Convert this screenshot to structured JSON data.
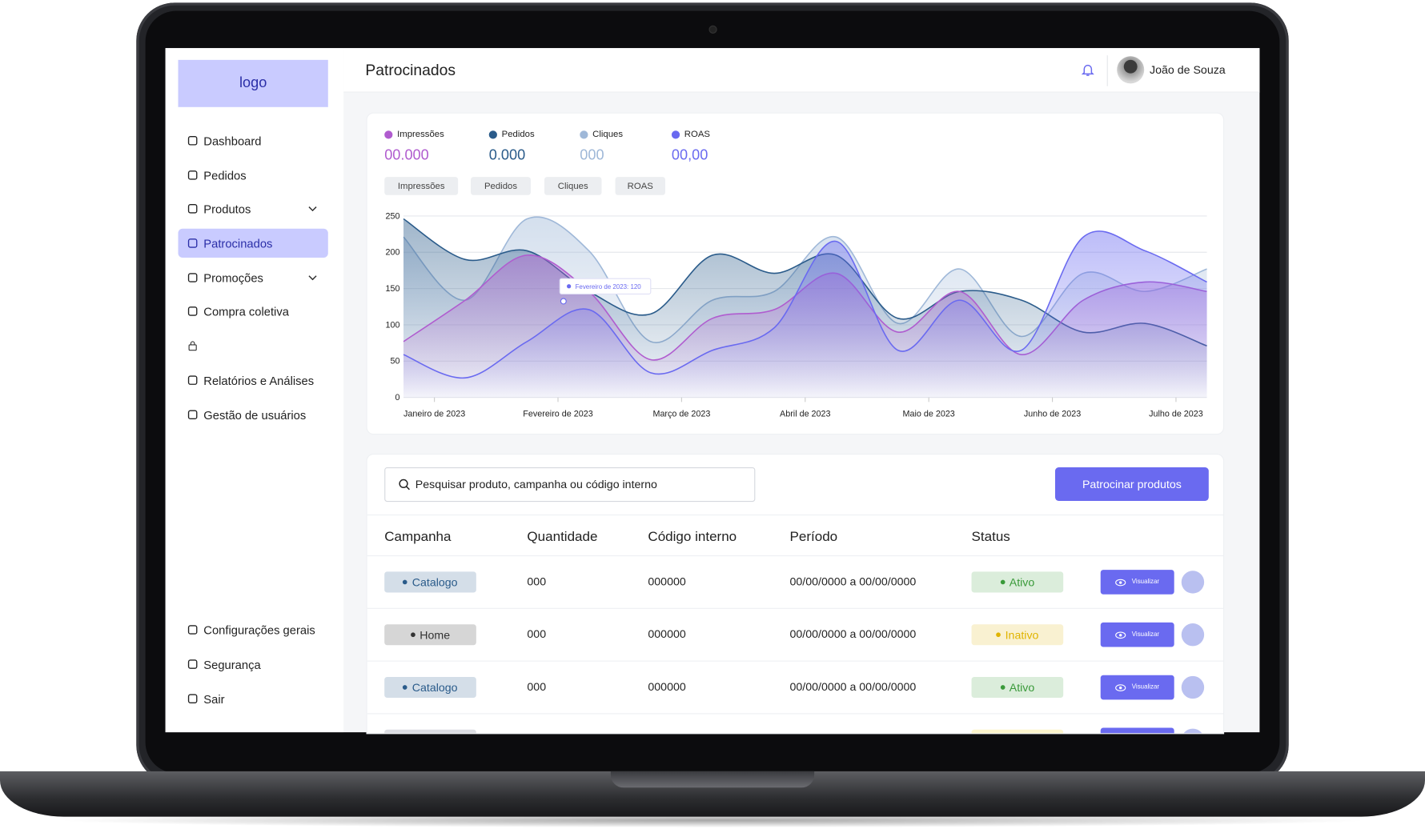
{
  "sidebar": {
    "logo": "logo",
    "nav": [
      "Dashboard",
      "Pedidos",
      "Produtos",
      "Patrocinados",
      "Promoções",
      "Compra coletiva",
      "Relatórios e Análises",
      "Gestão de usuários"
    ],
    "footer_nav": [
      "Configurações gerais",
      "Segurança",
      "Sair"
    ]
  },
  "header": {
    "title": "Patrocinados",
    "user": "João de Souza"
  },
  "metrics": [
    "00.000",
    "0.000",
    "000",
    "00,00"
  ],
  "tabs": [
    "Impressões",
    "Pedidos",
    "Cliques",
    "ROAS"
  ],
  "chart_data": {
    "type": "area",
    "x": [
      -0.25,
      0.25,
      0.75,
      1.25,
      1.75,
      2.25,
      2.75,
      3.25,
      3.75,
      4.25,
      4.75,
      5.25,
      5.75,
      6.25
    ],
    "xlim": [
      -0.25,
      6.25
    ],
    "xticks": [
      {
        "value": 0,
        "label": "Janeiro de 2023"
      },
      {
        "value": 1,
        "label": "Fevereiro de 2023"
      },
      {
        "value": 2,
        "label": "Março de 2023"
      },
      {
        "value": 3,
        "label": "Abril de 2023"
      },
      {
        "value": 4,
        "label": "Maio de 2023"
      },
      {
        "value": 5,
        "label": "Junho de 2023"
      },
      {
        "value": 6,
        "label": "Julho de 2023"
      }
    ],
    "ylim": [
      0,
      250
    ],
    "yticks": [
      0,
      50,
      100,
      150,
      200,
      250
    ],
    "grid": true,
    "annotation": "Fevereiro de 2023: 120",
    "series": [
      {
        "name": "Cliques",
        "color": "#9fb8d8",
        "values": [
          221,
          134,
          246,
          202,
          77,
          134,
          146,
          221,
          102,
          177,
          84,
          171,
          146,
          177
        ]
      },
      {
        "name": "Pedidos",
        "color": "#2a5b8a",
        "values": [
          246,
          190,
          202,
          146,
          115,
          196,
          171,
          196,
          109,
          146,
          134,
          90,
          102,
          71
        ]
      },
      {
        "name": "Impressões",
        "color": "#b05ccf",
        "values": [
          77,
          134,
          196,
          146,
          52,
          109,
          121,
          171,
          90,
          146,
          59,
          134,
          159,
          146
        ]
      },
      {
        "name": "ROAS",
        "color": "#6a6af0",
        "values": [
          59,
          27,
          77,
          121,
          34,
          65,
          96,
          215,
          65,
          134,
          65,
          221,
          202,
          159
        ]
      }
    ]
  },
  "table": {
    "search": "Pesquisar produto, campanha ou código interno",
    "button": "Patrocinar produtos",
    "columns": [
      "Campanha",
      "Quantidade",
      "Código interno",
      "Período",
      "Status"
    ],
    "rows": [
      {
        "campaign": "Catalogo",
        "campaign_color": "#2a5b8a",
        "quantity": "000",
        "code": "000000",
        "period": "00/00/0000 a 00/00/0000",
        "status": "Ativo",
        "status_color": "#3a9a3a",
        "action": "Visualizar"
      },
      {
        "campaign": "Home",
        "campaign_color": "#333333",
        "quantity": "000",
        "code": "000000",
        "period": "00/00/0000 a 00/00/0000",
        "status": "Inativo",
        "status_color": "#e0b400",
        "action": "Visualizar"
      },
      {
        "campaign": "Catalogo",
        "campaign_color": "#2a5b8a",
        "quantity": "000",
        "code": "000000",
        "period": "00/00/0000 a 00/00/0000",
        "status": "Ativo",
        "status_color": "#3a9a3a",
        "action": "Visualizar"
      }
    ]
  }
}
